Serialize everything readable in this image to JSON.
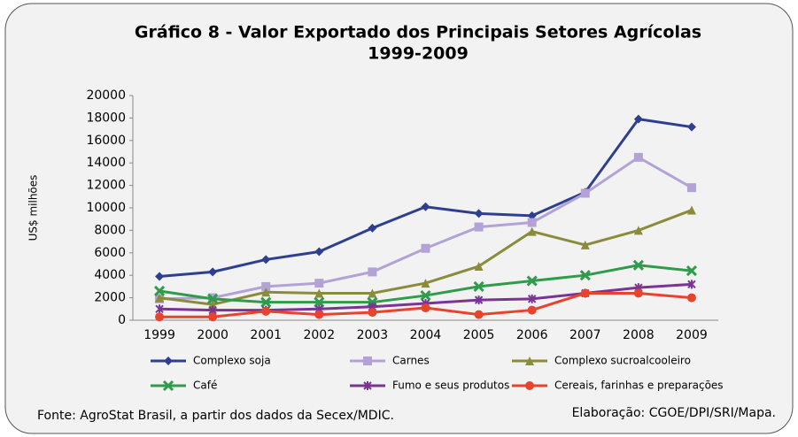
{
  "chart_data": {
    "type": "line",
    "title": "Gráfico 8 - Valor Exportado dos Principais Setores Agrícolas",
    "subtitle": "1999-2009",
    "y_label": "US$ milhões",
    "categories": [
      "1999",
      "2000",
      "2001",
      "2002",
      "2003",
      "2004",
      "2005",
      "2006",
      "2007",
      "2008",
      "2009"
    ],
    "ylim": [
      0,
      20000
    ],
    "yticks": [
      0,
      2000,
      4000,
      6000,
      8000,
      10000,
      12000,
      14000,
      16000,
      18000,
      20000
    ],
    "grid": false,
    "series": [
      {
        "name": "Complexo soja",
        "color": "#2e3f8f",
        "marker": "diamond",
        "values": [
          3900,
          4300,
          5400,
          6100,
          8200,
          10100,
          9500,
          9300,
          11400,
          17900,
          17200
        ]
      },
      {
        "name": "Carnes",
        "color": "#b3a2d6",
        "marker": "square",
        "values": [
          1900,
          2000,
          3000,
          3300,
          4300,
          6400,
          8300,
          8700,
          11300,
          14500,
          11800
        ]
      },
      {
        "name": "Complexo sucroalcooleiro",
        "color": "#8a8b3b",
        "marker": "triangle",
        "values": [
          2000,
          1400,
          2500,
          2400,
          2400,
          3300,
          4800,
          7900,
          6700,
          8000,
          9800
        ]
      },
      {
        "name": "Café",
        "color": "#2e9c4a",
        "marker": "x",
        "values": [
          2600,
          1900,
          1600,
          1600,
          1600,
          2200,
          3000,
          3500,
          4000,
          4900,
          4400
        ]
      },
      {
        "name": "Fumo e seus produtos",
        "color": "#7a3592",
        "marker": "star",
        "values": [
          1000,
          900,
          900,
          1000,
          1200,
          1500,
          1800,
          1900,
          2400,
          2900,
          3200
        ]
      },
      {
        "name": "Cereais, farinhas e preparações",
        "color": "#e8432c",
        "marker": "circle",
        "values": [
          300,
          300,
          800,
          500,
          700,
          1100,
          500,
          900,
          2400,
          2400,
          2000
        ]
      }
    ],
    "source": "Fonte: AgroStat Brasil, a partir dos dados da Secex/MDIC.",
    "credit": "Elaboração: CGOE/DPI/SRI/Mapa."
  }
}
